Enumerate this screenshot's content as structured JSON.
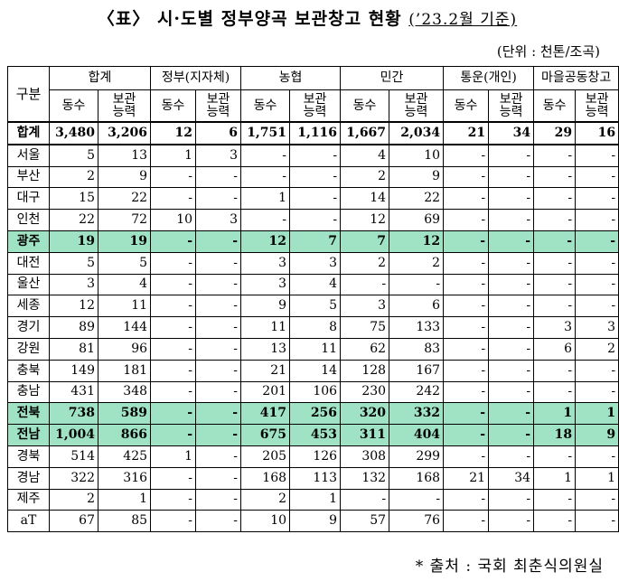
{
  "title": {
    "main": "〈표〉 시·도별 정부양곡 보관창고 현황",
    "basis": "(’23.2월 기준)"
  },
  "unit": "(단위 : 천톤/조곡)",
  "header": {
    "row_label": "구분",
    "groups": [
      "합계",
      "정부(지자체)",
      "농협",
      "민간",
      "통운(개인)",
      "마을공동창고"
    ],
    "sub_count": "동수",
    "sub_capacity": [
      "보관",
      "능력"
    ]
  },
  "rows": [
    {
      "region": "합계",
      "cells": [
        "3,480",
        "3,206",
        "12",
        "6",
        "1,751",
        "1,116",
        "1,667",
        "2,034",
        "21",
        "34",
        "29",
        "16"
      ]
    },
    {
      "region": "서울",
      "cells": [
        "5",
        "13",
        "1",
        "3",
        "-",
        "-",
        "4",
        "10",
        "-",
        "-",
        "-",
        "-"
      ]
    },
    {
      "region": "부산",
      "cells": [
        "2",
        "9",
        "-",
        "-",
        "-",
        "-",
        "2",
        "9",
        "-",
        "-",
        "-",
        "-"
      ]
    },
    {
      "region": "대구",
      "cells": [
        "15",
        "22",
        "-",
        "-",
        "1",
        "-",
        "14",
        "22",
        "-",
        "-",
        "-",
        "-"
      ]
    },
    {
      "region": "인천",
      "cells": [
        "22",
        "72",
        "10",
        "3",
        "-",
        "-",
        "12",
        "69",
        "-",
        "-",
        "-",
        "-"
      ]
    },
    {
      "region": "광주",
      "cells": [
        "19",
        "19",
        "-",
        "-",
        "12",
        "7",
        "7",
        "12",
        "-",
        "-",
        "-",
        "-"
      ]
    },
    {
      "region": "대전",
      "cells": [
        "5",
        "5",
        "-",
        "-",
        "3",
        "3",
        "2",
        "2",
        "-",
        "-",
        "-",
        "-"
      ]
    },
    {
      "region": "울산",
      "cells": [
        "3",
        "4",
        "-",
        "-",
        "3",
        "4",
        "-",
        "-",
        "-",
        "-",
        "-",
        "-"
      ]
    },
    {
      "region": "세종",
      "cells": [
        "12",
        "11",
        "-",
        "-",
        "9",
        "5",
        "3",
        "6",
        "-",
        "-",
        "-",
        "-"
      ]
    },
    {
      "region": "경기",
      "cells": [
        "89",
        "144",
        "-",
        "-",
        "11",
        "8",
        "75",
        "133",
        "-",
        "-",
        "3",
        "3"
      ]
    },
    {
      "region": "강원",
      "cells": [
        "81",
        "96",
        "-",
        "-",
        "13",
        "11",
        "62",
        "83",
        "-",
        "-",
        "6",
        "2"
      ]
    },
    {
      "region": "충북",
      "cells": [
        "149",
        "181",
        "-",
        "-",
        "21",
        "14",
        "128",
        "167",
        "-",
        "-",
        "-",
        "-"
      ]
    },
    {
      "region": "충남",
      "cells": [
        "431",
        "348",
        "-",
        "-",
        "201",
        "106",
        "230",
        "242",
        "-",
        "-",
        "-",
        "-"
      ]
    },
    {
      "region": "전북",
      "cells": [
        "738",
        "589",
        "-",
        "-",
        "417",
        "256",
        "320",
        "332",
        "-",
        "-",
        "1",
        "1"
      ]
    },
    {
      "region": "전남",
      "cells": [
        "1,004",
        "866",
        "-",
        "-",
        "675",
        "453",
        "311",
        "404",
        "-",
        "-",
        "18",
        "9"
      ]
    },
    {
      "region": "경북",
      "cells": [
        "514",
        "425",
        "1",
        "-",
        "205",
        "126",
        "308",
        "299",
        "-",
        "-",
        "-",
        "-"
      ]
    },
    {
      "region": "경남",
      "cells": [
        "322",
        "316",
        "-",
        "-",
        "168",
        "113",
        "132",
        "168",
        "21",
        "34",
        "1",
        "1"
      ]
    },
    {
      "region": "제주",
      "cells": [
        "2",
        "1",
        "-",
        "-",
        "2",
        "1",
        "-",
        "-",
        "-",
        "-",
        "-",
        "-"
      ]
    },
    {
      "region": "aT",
      "cells": [
        "67",
        "85",
        "-",
        "-",
        "10",
        "9",
        "57",
        "76",
        "-",
        "-",
        "-",
        "-"
      ]
    }
  ],
  "highlight_regions": [
    "광주",
    "전북",
    "전남"
  ],
  "highlight_color": "#9fe3c4",
  "source": "* 출처 : 국회 최춘식의원실"
}
